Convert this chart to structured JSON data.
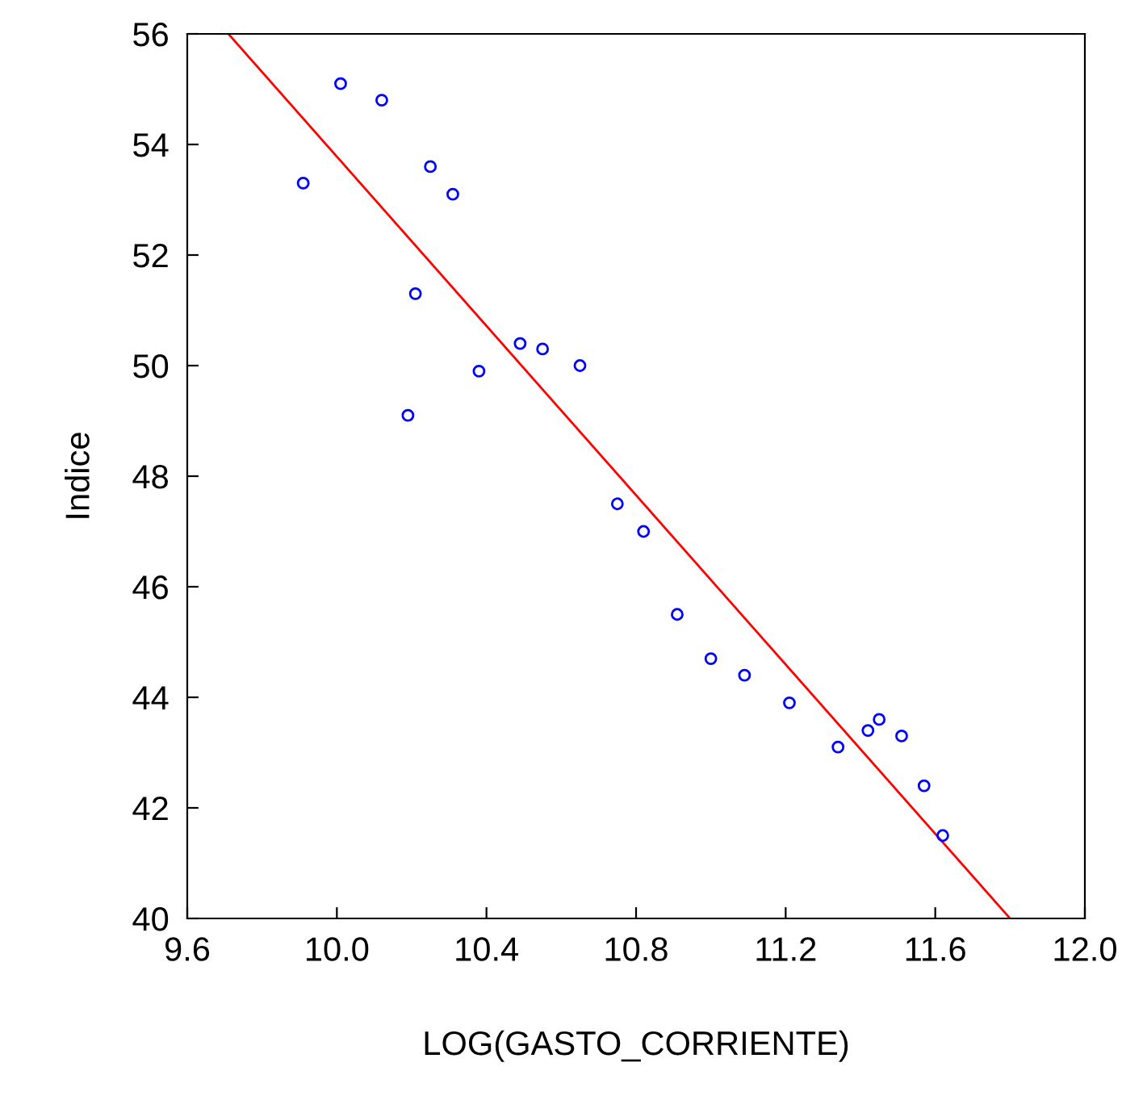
{
  "chart_data": {
    "type": "scatter",
    "xlabel": "LOG(GASTO_CORRIENTE)",
    "ylabel": "Indice",
    "xlim": [
      9.6,
      12.0
    ],
    "ylim": [
      40,
      56
    ],
    "xticks": [
      9.6,
      {
        "value": 10.0,
        "label": "10.0"
      },
      10.4,
      10.8,
      11.2,
      11.6,
      {
        "value": 12.0,
        "label": "12.0"
      }
    ],
    "yticks": [
      40,
      42,
      44,
      46,
      48,
      50,
      52,
      54,
      56
    ],
    "grid": false,
    "series": [
      {
        "marker": "circle",
        "color": "#0000ff",
        "x": [
          9.91,
          10.01,
          10.12,
          10.25,
          10.31,
          10.21,
          10.19,
          10.38,
          10.49,
          10.55,
          10.65,
          10.75,
          10.82,
          10.91,
          11.0,
          11.09,
          11.21,
          11.34,
          11.42,
          11.45,
          11.51,
          11.57,
          11.62
        ],
        "values": [
          53.3,
          55.1,
          54.8,
          53.6,
          53.1,
          51.3,
          49.1,
          49.9,
          50.4,
          50.3,
          50.0,
          47.5,
          47.0,
          45.5,
          44.7,
          44.4,
          43.9,
          43.1,
          43.4,
          43.6,
          43.3,
          42.4,
          41.5
        ]
      },
      {
        "type": "line",
        "color": "#ff0000",
        "x": [
          9.71,
          11.8
        ],
        "values": [
          56,
          40
        ]
      }
    ]
  }
}
